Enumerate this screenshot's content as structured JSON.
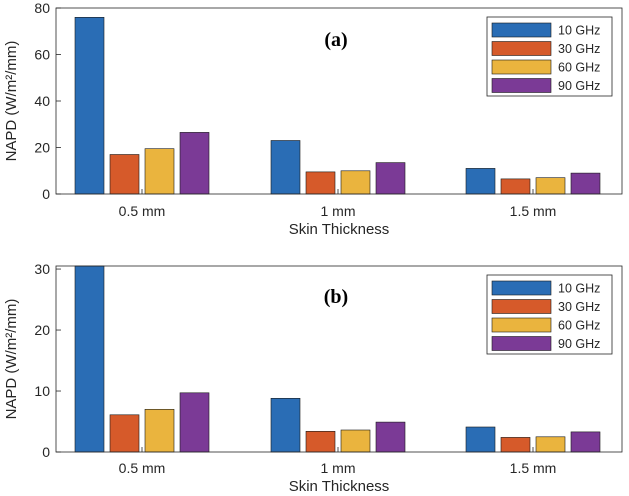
{
  "figure": {
    "panel_labels": [
      "(a)",
      "(b)"
    ]
  },
  "colors": {
    "series": [
      "#2a6db5",
      "#d65a2a",
      "#eab43e",
      "#7b3a96"
    ],
    "axis": "#262626",
    "legend_border": "#262626"
  },
  "chart_data": [
    {
      "type": "bar",
      "panel": "(a)",
      "categories": [
        "0.5 mm",
        "1 mm",
        "1.5 mm"
      ],
      "series": [
        {
          "name": "10 GHz",
          "values": [
            76,
            23,
            11
          ]
        },
        {
          "name": "30 GHz",
          "values": [
            17,
            9.5,
            6.5
          ]
        },
        {
          "name": "60 GHz",
          "values": [
            19.5,
            10,
            7
          ]
        },
        {
          "name": "90 GHz",
          "values": [
            26.5,
            13.5,
            9
          ]
        }
      ],
      "xlabel": "Skin Thickness",
      "ylabel": "NAPD (W/m²/mm)",
      "ylim": [
        0,
        80
      ],
      "yticks": [
        0,
        20,
        40,
        60,
        80
      ],
      "legend_position": "top-right",
      "grid": false
    },
    {
      "type": "bar",
      "panel": "(b)",
      "categories": [
        "0.5 mm",
        "1 mm",
        "1.5 mm"
      ],
      "series": [
        {
          "name": "10 GHz",
          "values": [
            30.5,
            8.8,
            4.1
          ]
        },
        {
          "name": "30 GHz",
          "values": [
            6.1,
            3.4,
            2.4
          ]
        },
        {
          "name": "60 GHz",
          "values": [
            7,
            3.6,
            2.5
          ]
        },
        {
          "name": "90 GHz",
          "values": [
            9.7,
            4.9,
            3.3
          ]
        }
      ],
      "xlabel": "Skin Thickness",
      "ylabel": "NAPD (W/m²/mm)",
      "ylim": [
        0,
        30.5
      ],
      "yticks": [
        0,
        10,
        20,
        30
      ],
      "legend_position": "top-right",
      "grid": false
    }
  ]
}
